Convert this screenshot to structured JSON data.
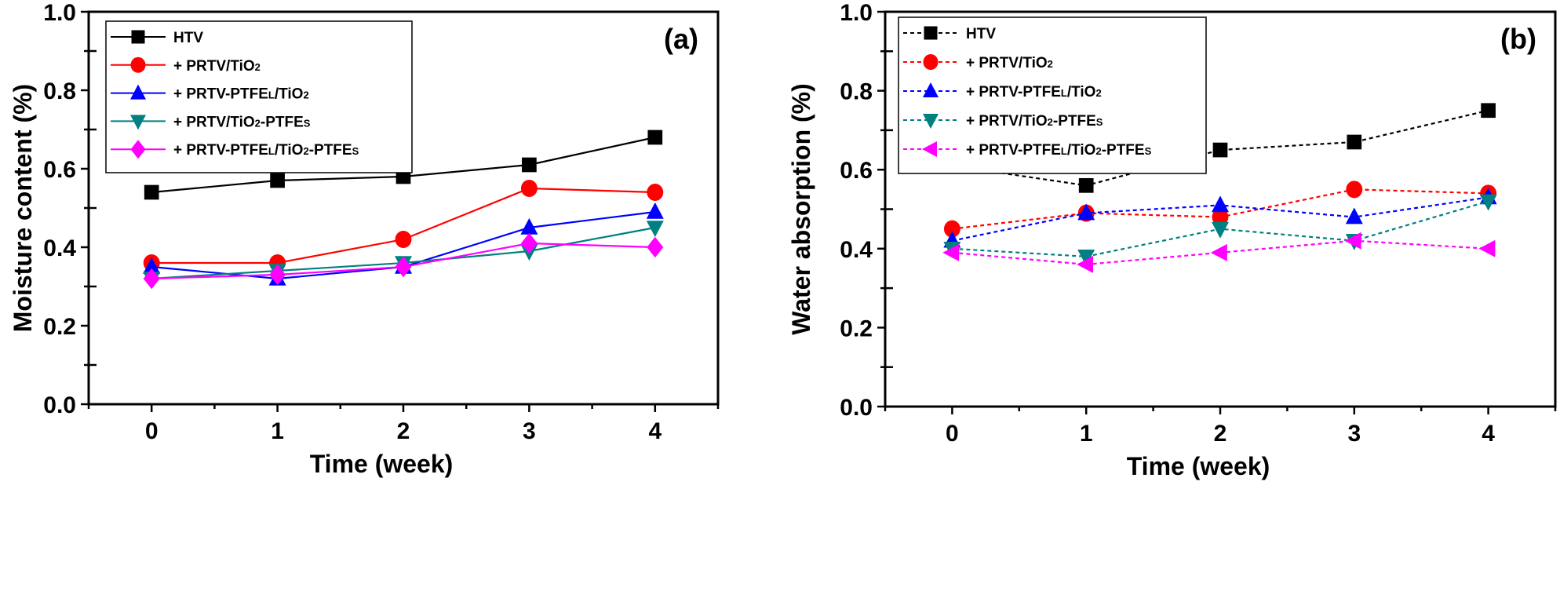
{
  "chart_data": [
    {
      "type": "line",
      "panel_label": "(a)",
      "title": "",
      "xlabel": "Time (week)",
      "ylabel": "Moisture content (%)",
      "x": [
        0,
        1,
        2,
        3,
        4
      ],
      "x_tick_labels": [
        "0",
        "1",
        "2",
        "3",
        "4"
      ],
      "xlim": [
        -0.5,
        4.5
      ],
      "ylim": [
        0.0,
        1.0
      ],
      "y_tick_labels": [
        "0.0",
        "0.2",
        "0.4",
        "0.6",
        "0.8",
        "1.0"
      ],
      "y_ticks": [
        0.0,
        0.2,
        0.4,
        0.6,
        0.8,
        1.0
      ],
      "line_style": "solid",
      "grid": false,
      "legend_position": "top-left",
      "series": [
        {
          "name": "HTV",
          "color": "#000000",
          "marker": "square",
          "values": [
            0.54,
            0.57,
            0.58,
            0.61,
            0.68
          ]
        },
        {
          "name": "+ PRTV/TiO₂",
          "color": "#ff0000",
          "marker": "circle",
          "values": [
            0.36,
            0.36,
            0.42,
            0.55,
            0.54
          ]
        },
        {
          "name": "+ PRTV-PTFEʟ/TiO₂",
          "color": "#0000ff",
          "marker": "triangle-up",
          "values": [
            0.35,
            0.32,
            0.35,
            0.45,
            0.49
          ]
        },
        {
          "name": "+ PRTV/TiO₂-PTFEs",
          "color": "#008080",
          "marker": "triangle-down",
          "values": [
            0.32,
            0.34,
            0.36,
            0.39,
            0.45
          ]
        },
        {
          "name": "+ PRTV-PTFEʟ/TiO₂-PTFEs",
          "color": "#ff00ff",
          "marker": "diamond",
          "values": [
            0.32,
            0.33,
            0.35,
            0.41,
            0.4
          ]
        }
      ]
    },
    {
      "type": "line",
      "panel_label": "(b)",
      "title": "",
      "xlabel": "Time (week)",
      "ylabel": "Water absorption (%)",
      "x": [
        0,
        1,
        2,
        3,
        4
      ],
      "x_tick_labels": [
        "0",
        "1",
        "2",
        "3",
        "4"
      ],
      "xlim": [
        -0.5,
        4.5
      ],
      "ylim": [
        0.0,
        1.0
      ],
      "y_tick_labels": [
        "0.0",
        "0.2",
        "0.4",
        "0.6",
        "0.8",
        "1.0"
      ],
      "y_ticks": [
        0.0,
        0.2,
        0.4,
        0.6,
        0.8,
        1.0
      ],
      "line_style": "dashed",
      "grid": false,
      "legend_position": "top-left",
      "series": [
        {
          "name": "HTV",
          "color": "#000000",
          "marker": "square",
          "values": [
            0.61,
            0.56,
            0.65,
            0.67,
            0.75
          ]
        },
        {
          "name": "+ PRTV/TiO₂",
          "color": "#ff0000",
          "marker": "circle",
          "values": [
            0.45,
            0.49,
            0.48,
            0.55,
            0.54
          ]
        },
        {
          "name": "+ PRTV-PTFEʟ/TiO₂",
          "color": "#0000ff",
          "marker": "triangle-up",
          "values": [
            0.42,
            0.49,
            0.51,
            0.48,
            0.53
          ]
        },
        {
          "name": "+ PRTV/TiO₂-PTFEs",
          "color": "#008080",
          "marker": "triangle-down",
          "values": [
            0.4,
            0.38,
            0.45,
            0.42,
            0.52
          ]
        },
        {
          "name": "+ PRTV-PTFEʟ/TiO₂-PTFEs",
          "color": "#ff00ff",
          "marker": "triangle-left",
          "values": [
            0.39,
            0.36,
            0.39,
            0.42,
            0.4
          ]
        }
      ]
    }
  ]
}
